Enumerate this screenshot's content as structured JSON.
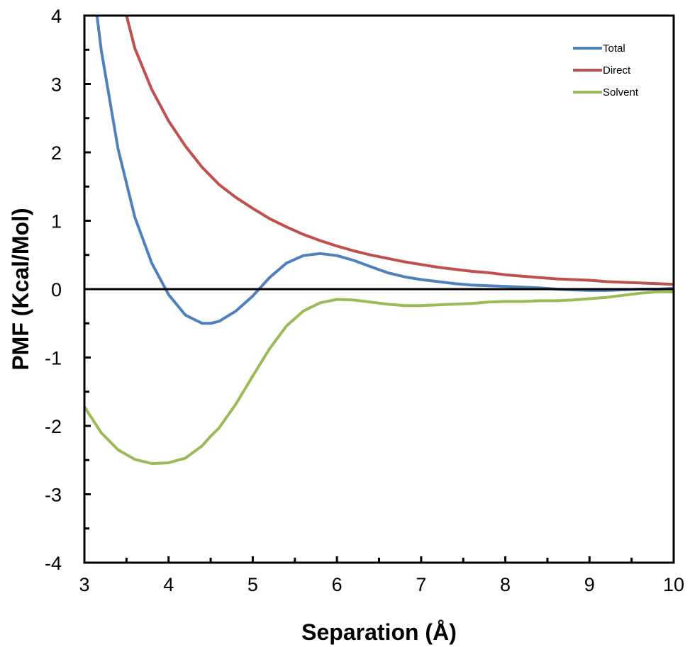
{
  "chart_data": {
    "type": "line",
    "title": "",
    "xlabel": "Separation (Å)",
    "ylabel": "PMF (Kcal/Mol)",
    "xlim": [
      3,
      10
    ],
    "ylim": [
      -4,
      4
    ],
    "x_ticks": [
      3,
      4,
      5,
      6,
      7,
      8,
      9,
      10
    ],
    "y_ticks": [
      -4,
      -3,
      -2,
      -1,
      0,
      1,
      2,
      3,
      4
    ],
    "grid": false,
    "zero_line": true,
    "legend_position": "top-right",
    "series": [
      {
        "name": "Total",
        "color": "#4f81bd",
        "x": [
          3.15,
          3.2,
          3.4,
          3.6,
          3.8,
          4.0,
          4.2,
          4.4,
          4.5,
          4.6,
          4.8,
          5.0,
          5.2,
          5.4,
          5.6,
          5.8,
          6.0,
          6.2,
          6.4,
          6.6,
          6.8,
          7.0,
          7.2,
          7.4,
          7.6,
          7.8,
          8.0,
          8.2,
          8.4,
          8.6,
          8.8,
          9.0,
          9.2,
          9.4,
          9.6,
          9.8,
          10.0
        ],
        "y": [
          4.0,
          3.5,
          2.05,
          1.05,
          0.38,
          -0.08,
          -0.38,
          -0.5,
          -0.5,
          -0.47,
          -0.32,
          -0.1,
          0.17,
          0.38,
          0.49,
          0.52,
          0.49,
          0.42,
          0.33,
          0.24,
          0.18,
          0.14,
          0.11,
          0.08,
          0.06,
          0.05,
          0.04,
          0.03,
          0.02,
          0.0,
          -0.01,
          -0.02,
          -0.02,
          -0.01,
          0.0,
          0.0,
          0.01
        ]
      },
      {
        "name": "Direct",
        "color": "#c0504d",
        "x": [
          3.5,
          3.6,
          3.8,
          4.0,
          4.2,
          4.4,
          4.6,
          4.8,
          5.0,
          5.2,
          5.4,
          5.6,
          5.8,
          6.0,
          6.2,
          6.4,
          6.6,
          6.8,
          7.0,
          7.2,
          7.4,
          7.6,
          7.8,
          8.0,
          8.2,
          8.4,
          8.6,
          8.8,
          9.0,
          9.2,
          9.4,
          9.6,
          9.8,
          10.0
        ],
        "y": [
          4.0,
          3.52,
          2.92,
          2.46,
          2.09,
          1.78,
          1.53,
          1.34,
          1.18,
          1.03,
          0.91,
          0.8,
          0.71,
          0.63,
          0.56,
          0.5,
          0.45,
          0.4,
          0.36,
          0.32,
          0.29,
          0.26,
          0.24,
          0.21,
          0.19,
          0.17,
          0.15,
          0.14,
          0.13,
          0.11,
          0.1,
          0.09,
          0.08,
          0.07
        ]
      },
      {
        "name": "Solvent",
        "color": "#9bbb59",
        "x": [
          3.0,
          3.2,
          3.4,
          3.6,
          3.8,
          4.0,
          4.2,
          4.4,
          4.5,
          4.6,
          4.8,
          5.0,
          5.2,
          5.4,
          5.6,
          5.8,
          6.0,
          6.2,
          6.4,
          6.6,
          6.8,
          7.0,
          7.2,
          7.4,
          7.6,
          7.8,
          8.0,
          8.2,
          8.4,
          8.6,
          8.8,
          9.0,
          9.2,
          9.4,
          9.6,
          9.8,
          10.0
        ],
        "y": [
          -1.72,
          -2.1,
          -2.35,
          -2.49,
          -2.55,
          -2.54,
          -2.47,
          -2.29,
          -2.15,
          -2.03,
          -1.68,
          -1.27,
          -0.87,
          -0.54,
          -0.32,
          -0.2,
          -0.15,
          -0.16,
          -0.19,
          -0.22,
          -0.24,
          -0.24,
          -0.23,
          -0.22,
          -0.21,
          -0.19,
          -0.18,
          -0.18,
          -0.17,
          -0.17,
          -0.16,
          -0.14,
          -0.12,
          -0.09,
          -0.06,
          -0.04,
          -0.04
        ]
      }
    ]
  }
}
